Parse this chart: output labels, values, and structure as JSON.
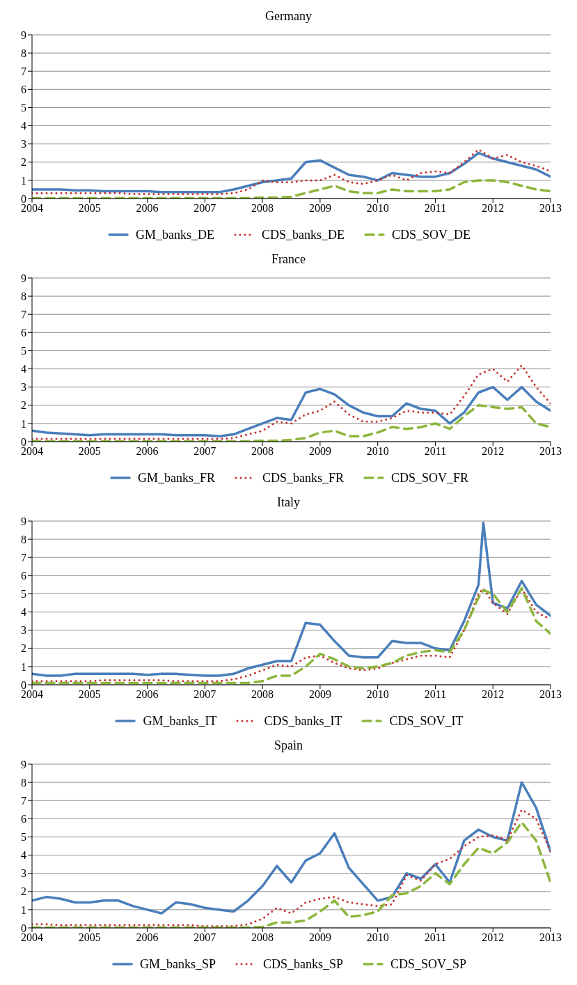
{
  "chart_data": [
    {
      "type": "line",
      "title": "Germany",
      "x": [
        "2004-01",
        "2004-04",
        "2004-07",
        "2004-10",
        "2005-01",
        "2005-04",
        "2005-07",
        "2005-10",
        "2006-01",
        "2006-04",
        "2006-07",
        "2006-10",
        "2007-01",
        "2007-04",
        "2007-07",
        "2007-10",
        "2008-01",
        "2008-04",
        "2008-07",
        "2008-10",
        "2009-01",
        "2009-04",
        "2009-07",
        "2009-10",
        "2010-01",
        "2010-04",
        "2010-07",
        "2010-10",
        "2011-01",
        "2011-04",
        "2011-07",
        "2011-10",
        "2012-01",
        "2012-04",
        "2012-07",
        "2012-10",
        "2013-01"
      ],
      "xlim": [
        "2004-01",
        "2013-01"
      ],
      "xticks": [
        "2004",
        "2005",
        "2006",
        "2007",
        "2008",
        "2009",
        "2010",
        "2011",
        "2012",
        "2013"
      ],
      "ylim": [
        0,
        9
      ],
      "yticks": [
        0,
        1,
        2,
        3,
        4,
        5,
        6,
        7,
        8,
        9
      ],
      "grid": "y",
      "legend": "bottom",
      "series": [
        {
          "name": "GM_banks_DE",
          "color": "#4a7ebb",
          "line_style": "solid",
          "values": [
            0.5,
            0.5,
            0.5,
            0.45,
            0.45,
            0.4,
            0.4,
            0.4,
            0.4,
            0.35,
            0.35,
            0.35,
            0.35,
            0.35,
            0.5,
            0.7,
            0.9,
            1.0,
            1.1,
            2.0,
            2.1,
            1.7,
            1.3,
            1.2,
            1.0,
            1.4,
            1.3,
            1.2,
            1.2,
            1.4,
            1.9,
            2.5,
            2.2,
            2.0,
            1.8,
            1.6,
            1.2
          ]
        },
        {
          "name": "CDS_banks_DE",
          "color": "#c62d2d",
          "line_style": "dotted",
          "values": [
            0.3,
            0.3,
            0.3,
            0.3,
            0.3,
            0.3,
            0.3,
            0.25,
            0.25,
            0.25,
            0.25,
            0.25,
            0.25,
            0.25,
            0.3,
            0.5,
            1.0,
            0.9,
            0.9,
            1.0,
            1.0,
            1.3,
            0.9,
            0.8,
            1.0,
            1.3,
            1.0,
            1.4,
            1.5,
            1.4,
            2.0,
            2.7,
            2.2,
            2.4,
            2.0,
            1.8,
            1.5
          ]
        },
        {
          "name": "CDS_SOV_DE",
          "color": "#8db63c",
          "line_style": "dashed",
          "values": [
            0.02,
            0.02,
            0.02,
            0.02,
            0.02,
            0.02,
            0.02,
            0.02,
            0.02,
            0.02,
            0.02,
            0.02,
            0.02,
            0.02,
            0.02,
            0.02,
            0.05,
            0.05,
            0.1,
            0.3,
            0.5,
            0.7,
            0.4,
            0.3,
            0.3,
            0.5,
            0.4,
            0.4,
            0.4,
            0.5,
            0.9,
            1.0,
            1.0,
            0.9,
            0.7,
            0.5,
            0.4
          ]
        }
      ]
    },
    {
      "type": "line",
      "title": "France",
      "x": [
        "2004-01",
        "2004-04",
        "2004-07",
        "2004-10",
        "2005-01",
        "2005-04",
        "2005-07",
        "2005-10",
        "2006-01",
        "2006-04",
        "2006-07",
        "2006-10",
        "2007-01",
        "2007-04",
        "2007-07",
        "2007-10",
        "2008-01",
        "2008-04",
        "2008-07",
        "2008-10",
        "2009-01",
        "2009-04",
        "2009-07",
        "2009-10",
        "2010-01",
        "2010-04",
        "2010-07",
        "2010-10",
        "2011-01",
        "2011-04",
        "2011-07",
        "2011-10",
        "2012-01",
        "2012-04",
        "2012-07",
        "2012-10",
        "2013-01"
      ],
      "xlim": [
        "2004-01",
        "2013-01"
      ],
      "xticks": [
        "2004",
        "2005",
        "2006",
        "2007",
        "2008",
        "2009",
        "2010",
        "2011",
        "2012",
        "2013"
      ],
      "ylim": [
        0,
        9
      ],
      "yticks": [
        0,
        1,
        2,
        3,
        4,
        5,
        6,
        7,
        8,
        9
      ],
      "grid": "y",
      "legend": "bottom",
      "series": [
        {
          "name": "GM_banks_FR",
          "color": "#4a7ebb",
          "line_style": "solid",
          "values": [
            0.6,
            0.5,
            0.45,
            0.4,
            0.35,
            0.4,
            0.4,
            0.4,
            0.4,
            0.4,
            0.35,
            0.35,
            0.35,
            0.3,
            0.4,
            0.7,
            1.0,
            1.3,
            1.2,
            2.7,
            2.9,
            2.6,
            2.0,
            1.6,
            1.4,
            1.4,
            2.1,
            1.8,
            1.7,
            1.0,
            1.6,
            2.7,
            3.0,
            2.3,
            3.0,
            2.2,
            1.7
          ]
        },
        {
          "name": "CDS_banks_FR",
          "color": "#c62d2d",
          "line_style": "dotted",
          "values": [
            0.15,
            0.15,
            0.15,
            0.15,
            0.15,
            0.15,
            0.15,
            0.15,
            0.15,
            0.15,
            0.15,
            0.15,
            0.15,
            0.15,
            0.2,
            0.4,
            0.6,
            1.1,
            1.0,
            1.5,
            1.7,
            2.2,
            1.5,
            1.1,
            1.1,
            1.3,
            1.7,
            1.6,
            1.6,
            1.5,
            2.5,
            3.7,
            4.0,
            3.3,
            4.2,
            3.0,
            2.1
          ]
        },
        {
          "name": "CDS_SOV_FR",
          "color": "#8db63c",
          "line_style": "dashed",
          "values": [
            0.02,
            0.02,
            0.02,
            0.02,
            0.02,
            0.02,
            0.02,
            0.02,
            0.02,
            0.02,
            0.02,
            0.02,
            0.02,
            0.02,
            0.02,
            0.02,
            0.05,
            0.05,
            0.1,
            0.2,
            0.5,
            0.6,
            0.3,
            0.3,
            0.5,
            0.8,
            0.7,
            0.8,
            1.0,
            0.7,
            1.4,
            2.0,
            1.9,
            1.8,
            1.9,
            1.0,
            0.8
          ]
        }
      ]
    },
    {
      "type": "line",
      "title": "Italy",
      "x": [
        "2004-01",
        "2004-04",
        "2004-07",
        "2004-10",
        "2005-01",
        "2005-04",
        "2005-07",
        "2005-10",
        "2006-01",
        "2006-04",
        "2006-07",
        "2006-10",
        "2007-01",
        "2007-04",
        "2007-07",
        "2007-10",
        "2008-01",
        "2008-04",
        "2008-07",
        "2008-10",
        "2009-01",
        "2009-04",
        "2009-07",
        "2009-10",
        "2010-01",
        "2010-04",
        "2010-07",
        "2010-10",
        "2011-01",
        "2011-04",
        "2011-07",
        "2011-10",
        "2011-11",
        "2012-01",
        "2012-04",
        "2012-07",
        "2012-10",
        "2013-01"
      ],
      "xlim": [
        "2004-01",
        "2013-01"
      ],
      "xticks": [
        "2004",
        "2005",
        "2006",
        "2007",
        "2008",
        "2009",
        "2010",
        "2011",
        "2012",
        "2013"
      ],
      "ylim": [
        0,
        9
      ],
      "yticks": [
        0,
        1,
        2,
        3,
        4,
        5,
        6,
        7,
        8,
        9
      ],
      "grid": "y",
      "legend": "bottom",
      "series": [
        {
          "name": "GM_banks_IT",
          "color": "#4a7ebb",
          "line_style": "solid",
          "values": [
            0.6,
            0.5,
            0.5,
            0.6,
            0.6,
            0.6,
            0.6,
            0.6,
            0.55,
            0.6,
            0.6,
            0.55,
            0.5,
            0.5,
            0.6,
            0.9,
            1.1,
            1.3,
            1.3,
            3.4,
            3.3,
            2.4,
            1.6,
            1.5,
            1.5,
            2.4,
            2.3,
            2.3,
            2.0,
            1.9,
            3.5,
            5.5,
            8.9,
            4.5,
            4.2,
            5.7,
            4.4,
            3.8
          ]
        },
        {
          "name": "CDS_banks_IT",
          "color": "#c62d2d",
          "line_style": "dotted",
          "values": [
            0.2,
            0.2,
            0.2,
            0.2,
            0.2,
            0.25,
            0.25,
            0.25,
            0.25,
            0.25,
            0.2,
            0.2,
            0.2,
            0.2,
            0.3,
            0.5,
            0.8,
            1.1,
            1.0,
            1.5,
            1.6,
            1.2,
            0.9,
            0.8,
            0.9,
            1.2,
            1.4,
            1.6,
            1.6,
            1.5,
            3.0,
            5.0,
            5.3,
            4.5,
            3.9,
            5.3,
            4.0,
            3.6
          ]
        },
        {
          "name": "CDS_SOV_IT",
          "color": "#8db63c",
          "line_style": "dashed",
          "values": [
            0.1,
            0.1,
            0.1,
            0.1,
            0.1,
            0.1,
            0.1,
            0.1,
            0.1,
            0.1,
            0.1,
            0.1,
            0.1,
            0.1,
            0.1,
            0.1,
            0.2,
            0.5,
            0.5,
            1.0,
            1.7,
            1.4,
            1.0,
            0.9,
            1.0,
            1.2,
            1.6,
            1.8,
            1.9,
            1.8,
            3.0,
            4.8,
            5.2,
            5.0,
            4.0,
            5.3,
            3.5,
            2.8
          ]
        }
      ]
    },
    {
      "type": "line",
      "title": "Spain",
      "x": [
        "2004-01",
        "2004-04",
        "2004-07",
        "2004-10",
        "2005-01",
        "2005-04",
        "2005-07",
        "2005-10",
        "2006-01",
        "2006-04",
        "2006-07",
        "2006-10",
        "2007-01",
        "2007-04",
        "2007-07",
        "2007-10",
        "2008-01",
        "2008-04",
        "2008-07",
        "2008-10",
        "2009-01",
        "2009-04",
        "2009-07",
        "2009-10",
        "2010-01",
        "2010-04",
        "2010-07",
        "2010-10",
        "2011-01",
        "2011-04",
        "2011-07",
        "2011-10",
        "2012-01",
        "2012-04",
        "2012-07",
        "2012-10",
        "2013-01"
      ],
      "xlim": [
        "2004-01",
        "2013-01"
      ],
      "xticks": [
        "2004",
        "2005",
        "2006",
        "2007",
        "2008",
        "2009",
        "2010",
        "2011",
        "2012",
        "2013"
      ],
      "ylim": [
        0,
        9
      ],
      "yticks": [
        0,
        1,
        2,
        3,
        4,
        5,
        6,
        7,
        8,
        9
      ],
      "grid": "y",
      "legend": "bottom",
      "series": [
        {
          "name": "GM_banks_SP",
          "color": "#4a7ebb",
          "line_style": "solid",
          "values": [
            1.5,
            1.7,
            1.6,
            1.4,
            1.4,
            1.5,
            1.5,
            1.2,
            1.0,
            0.8,
            1.4,
            1.3,
            1.1,
            1.0,
            0.9,
            1.5,
            2.3,
            3.4,
            2.5,
            3.7,
            4.1,
            5.2,
            3.3,
            2.4,
            1.5,
            1.7,
            3.0,
            2.7,
            3.5,
            2.5,
            4.8,
            5.4,
            5.0,
            4.8,
            8.0,
            6.6,
            4.2
          ]
        },
        {
          "name": "CDS_banks_SP",
          "color": "#c62d2d",
          "line_style": "dotted",
          "values": [
            0.2,
            0.2,
            0.15,
            0.15,
            0.15,
            0.15,
            0.15,
            0.15,
            0.15,
            0.15,
            0.15,
            0.15,
            0.1,
            0.1,
            0.1,
            0.2,
            0.5,
            1.1,
            0.8,
            1.4,
            1.6,
            1.7,
            1.4,
            1.3,
            1.2,
            1.3,
            2.9,
            2.6,
            3.5,
            3.8,
            4.5,
            5.0,
            5.1,
            4.8,
            6.5,
            6.0,
            4.2
          ]
        },
        {
          "name": "CDS_SOV_SP",
          "color": "#8db63c",
          "line_style": "dashed",
          "values": [
            0.02,
            0.02,
            0.02,
            0.02,
            0.02,
            0.02,
            0.02,
            0.02,
            0.02,
            0.02,
            0.02,
            0.02,
            0.02,
            0.02,
            0.02,
            0.02,
            0.05,
            0.3,
            0.3,
            0.4,
            0.9,
            1.5,
            0.6,
            0.7,
            0.9,
            1.8,
            1.9,
            2.3,
            3.0,
            2.4,
            3.5,
            4.4,
            4.1,
            4.7,
            5.8,
            4.8,
            2.5
          ]
        }
      ]
    }
  ]
}
